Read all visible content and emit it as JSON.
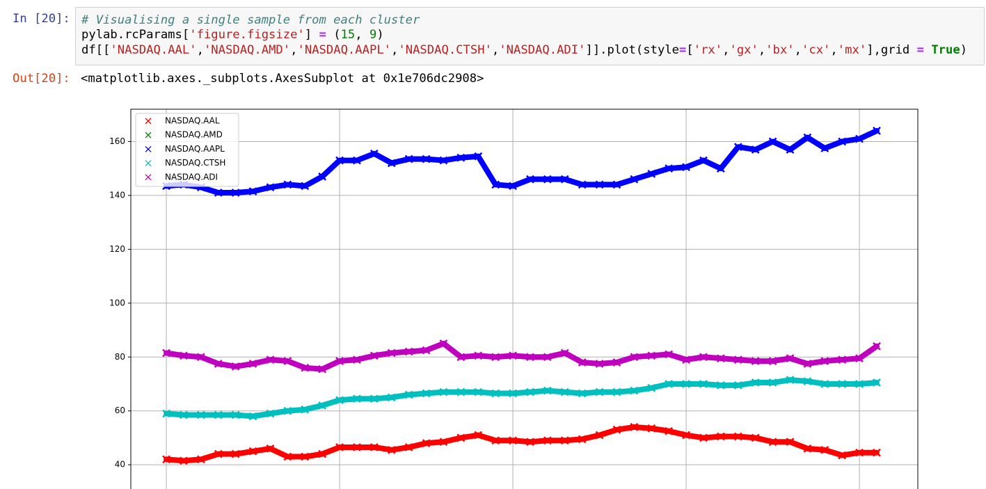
{
  "cell": {
    "input_prompt": "In [20]:",
    "code": {
      "lines": [
        [
          "# Visualising a single sample from each cluster"
        ],
        [
          "pylab.rcParams[",
          "'figure.figsize'",
          "] ",
          "=",
          " (",
          "15",
          ", ",
          "9",
          ")"
        ],
        [
          "df[[",
          "'NASDAQ.AAL'",
          ",",
          "'NASDAQ.AMD'",
          ",",
          "'NASDAQ.AAPL'",
          ",",
          "'NASDAQ.CTSH'",
          ",",
          "'NASDAQ.ADI'",
          "]].plot(style",
          "=",
          "[",
          "'rx'",
          ",",
          "'gx'",
          ",",
          "'bx'",
          ",",
          "'cx'",
          ",",
          "'mx'",
          "],grid ",
          "=",
          " True",
          ")"
        ]
      ]
    },
    "output_prompt": "Out[20]:",
    "output_text": "<matplotlib.axes._subplots.AxesSubplot at 0x1e706dc2908>"
  },
  "chart_data": {
    "type": "scatter",
    "marker": "x",
    "x": [
      0,
      1,
      2,
      3,
      4,
      5,
      6,
      7,
      8,
      9,
      10,
      11,
      12,
      13,
      14,
      15,
      16,
      17,
      18,
      19,
      20,
      21,
      22,
      23,
      24,
      25,
      26,
      27,
      28,
      29,
      30,
      31,
      32,
      33,
      34,
      35,
      36,
      37,
      38,
      39,
      40,
      41
    ],
    "xlim": [
      -2.05,
      43.37
    ],
    "xticks": [
      0,
      10,
      20,
      30,
      40
    ],
    "ylim": [
      31,
      172
    ],
    "yticks": [
      40,
      60,
      80,
      100,
      120,
      140,
      160
    ],
    "grid": true,
    "legend": "upper left",
    "series": [
      {
        "name": "NASDAQ.AAL",
        "color": "#ff0000",
        "values": [
          42,
          41.5,
          42,
          44,
          44,
          45,
          46,
          43,
          43,
          44,
          46.5,
          46.5,
          46.5,
          45.5,
          46.5,
          48,
          48.5,
          50,
          51,
          49,
          49,
          48.5,
          49,
          49,
          49.5,
          51,
          53,
          54,
          53.5,
          52.5,
          51,
          50,
          50.5,
          50.5,
          50,
          48.5,
          48.5,
          46,
          45.5,
          43.5,
          44.5,
          44.5
        ]
      },
      {
        "name": "NASDAQ.AMD",
        "color": "#008000",
        "values": [
          null,
          null,
          null,
          null,
          null,
          null,
          null,
          null,
          null,
          null,
          null,
          null,
          null,
          null,
          null,
          null,
          null,
          null,
          null,
          null,
          null,
          null,
          null,
          null,
          null,
          null,
          null,
          null,
          null,
          null,
          null,
          null,
          null,
          null,
          null,
          null,
          null,
          null,
          null,
          null,
          null,
          null
        ]
      },
      {
        "name": "NASDAQ.AAPL",
        "color": "#0000ff",
        "values": [
          143.5,
          144,
          143,
          141,
          141,
          141.5,
          143,
          144,
          143.5,
          147,
          153,
          153,
          155.5,
          152,
          153.5,
          153.5,
          153,
          154,
          154.5,
          144,
          143.5,
          146,
          146,
          146,
          144,
          144,
          144,
          146,
          148,
          150,
          150.5,
          153,
          150,
          158,
          157,
          160,
          157,
          161.5,
          157.5,
          160,
          161,
          164
        ]
      },
      {
        "name": "NASDAQ.CTSH",
        "color": "#00bfbf",
        "values": [
          59,
          58.5,
          58.5,
          58.5,
          58.5,
          58,
          59,
          60,
          60.5,
          62,
          64,
          64.5,
          64.5,
          65,
          66,
          66.5,
          67,
          67,
          67,
          66.5,
          66.5,
          67,
          67.5,
          67,
          66.5,
          67,
          67,
          67.5,
          68.5,
          70,
          70,
          70,
          69.5,
          69.5,
          70.5,
          70.5,
          71.5,
          71,
          70,
          70,
          70,
          70.5
        ]
      },
      {
        "name": "NASDAQ.ADI",
        "color": "#bf00bf",
        "values": [
          81.5,
          80.5,
          80,
          77.5,
          76.5,
          77.5,
          79,
          78.5,
          76,
          75.5,
          78.5,
          79,
          80.5,
          81.5,
          82,
          82.5,
          85,
          80,
          80.5,
          80,
          80.5,
          80,
          80,
          81.5,
          78,
          77.5,
          78,
          80,
          80.5,
          81,
          79,
          80,
          79.5,
          79,
          78.5,
          78.5,
          79.5,
          77.5,
          78.5,
          79,
          79.5,
          84
        ]
      }
    ]
  }
}
